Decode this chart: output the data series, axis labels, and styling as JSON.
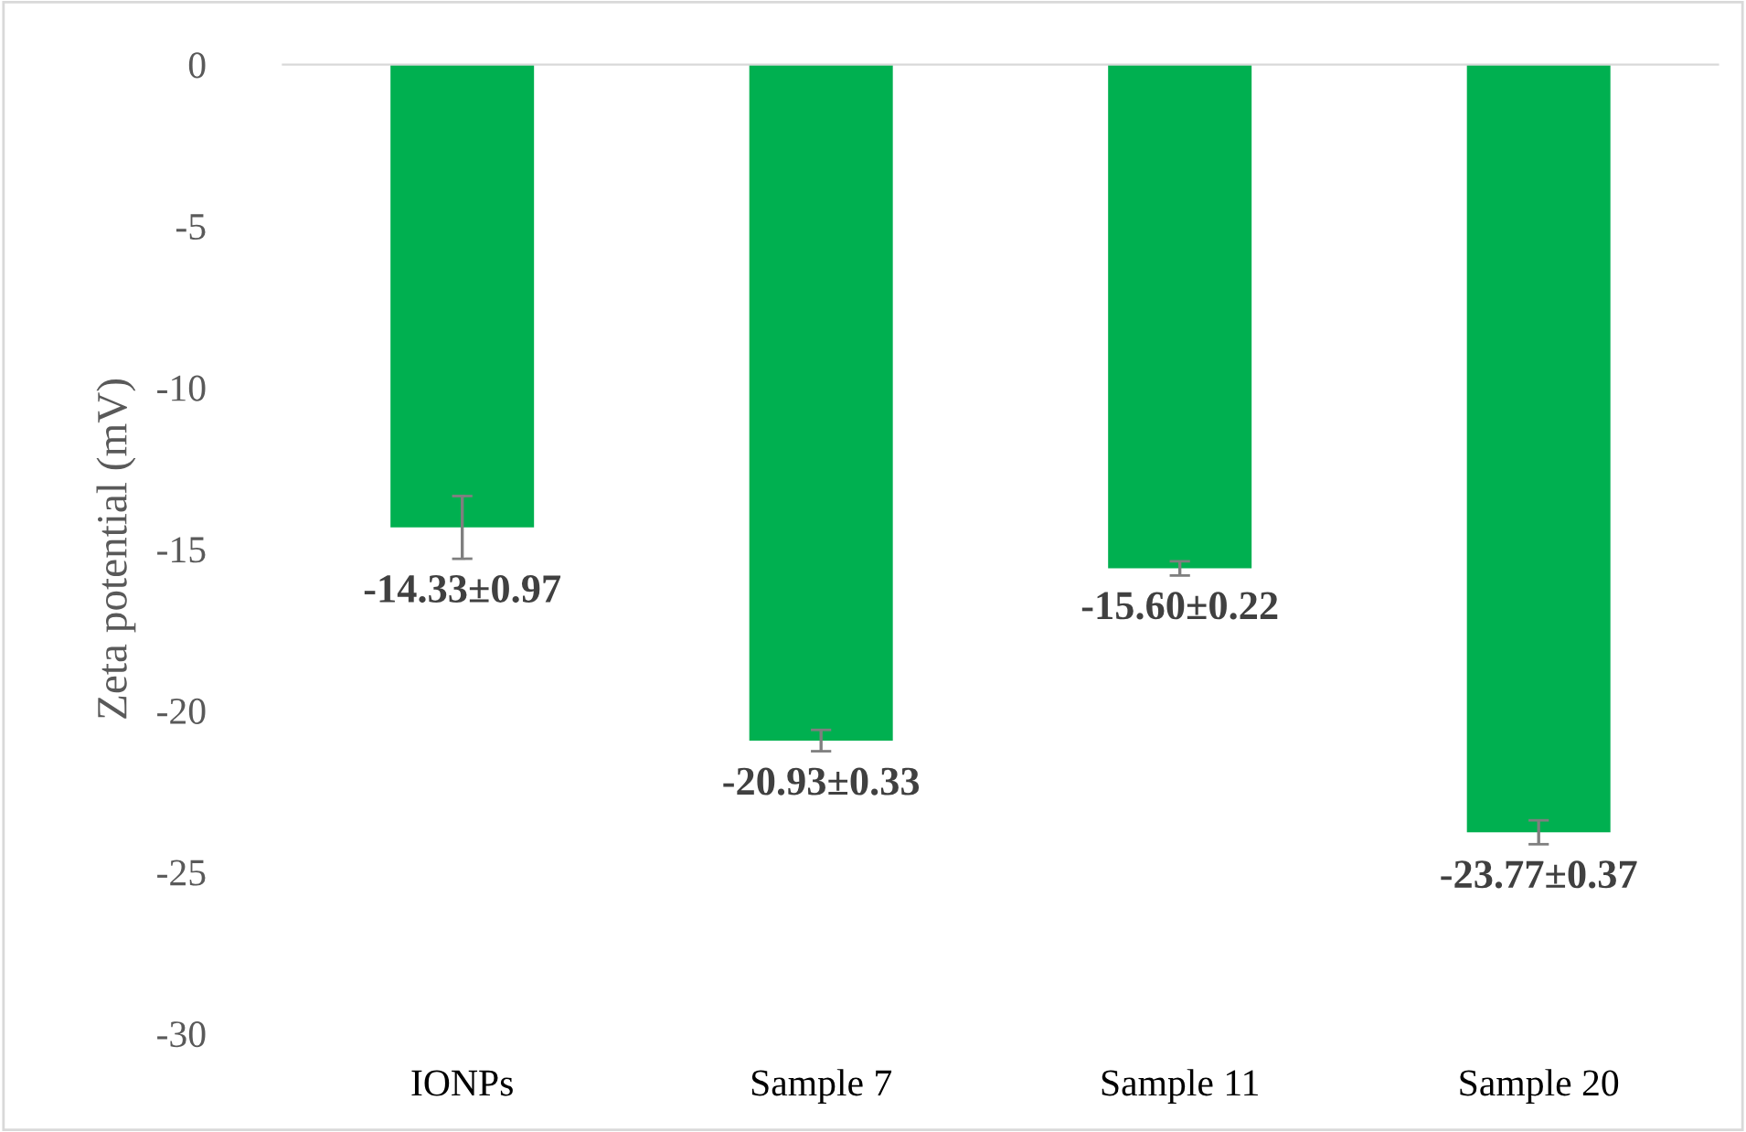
{
  "chart_data": {
    "type": "bar",
    "ylabel": "Zeta potential (mV)",
    "categories": [
      "IONPs",
      "Sample 7",
      "Sample 11",
      "Sample 20"
    ],
    "values": [
      -14.33,
      -20.93,
      -15.6,
      -23.77
    ],
    "errors": [
      0.97,
      0.33,
      0.22,
      0.37
    ],
    "value_labels": [
      "-14.33±0.97",
      "-20.93±0.33",
      "-15.60±0.22",
      "-23.77±0.37"
    ],
    "color": "#00b050",
    "ylim": [
      -30,
      0
    ],
    "yticks": [
      0,
      -5,
      -10,
      -15,
      -20,
      -25,
      -30
    ]
  }
}
